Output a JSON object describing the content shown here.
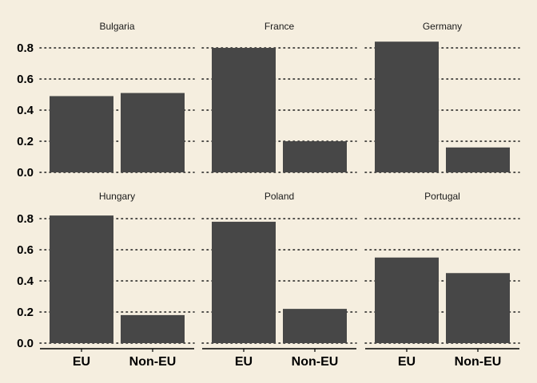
{
  "chart_data": {
    "type": "bar",
    "title": "",
    "xlabel": "",
    "ylabel": "",
    "categories": [
      "EU",
      "Non-EU"
    ],
    "ylim": [
      0,
      0.85
    ],
    "yticks": [
      0.0,
      0.2,
      0.4,
      0.6,
      0.8
    ],
    "ytick_labels": [
      "0.0",
      "0.2",
      "0.4",
      "0.6",
      "0.8"
    ],
    "grid": true,
    "facets": [
      {
        "name": "Bulgaria",
        "values": [
          0.49,
          0.51
        ]
      },
      {
        "name": "France",
        "values": [
          0.8,
          0.2
        ]
      },
      {
        "name": "Germany",
        "values": [
          0.84,
          0.16
        ]
      },
      {
        "name": "Hungary",
        "values": [
          0.82,
          0.18
        ]
      },
      {
        "name": "Poland",
        "values": [
          0.78,
          0.22
        ]
      },
      {
        "name": "Portugal",
        "values": [
          0.55,
          0.45
        ]
      }
    ],
    "colors": {
      "background": "#f5eedf",
      "bar": "#474747",
      "text": "#000000"
    }
  }
}
